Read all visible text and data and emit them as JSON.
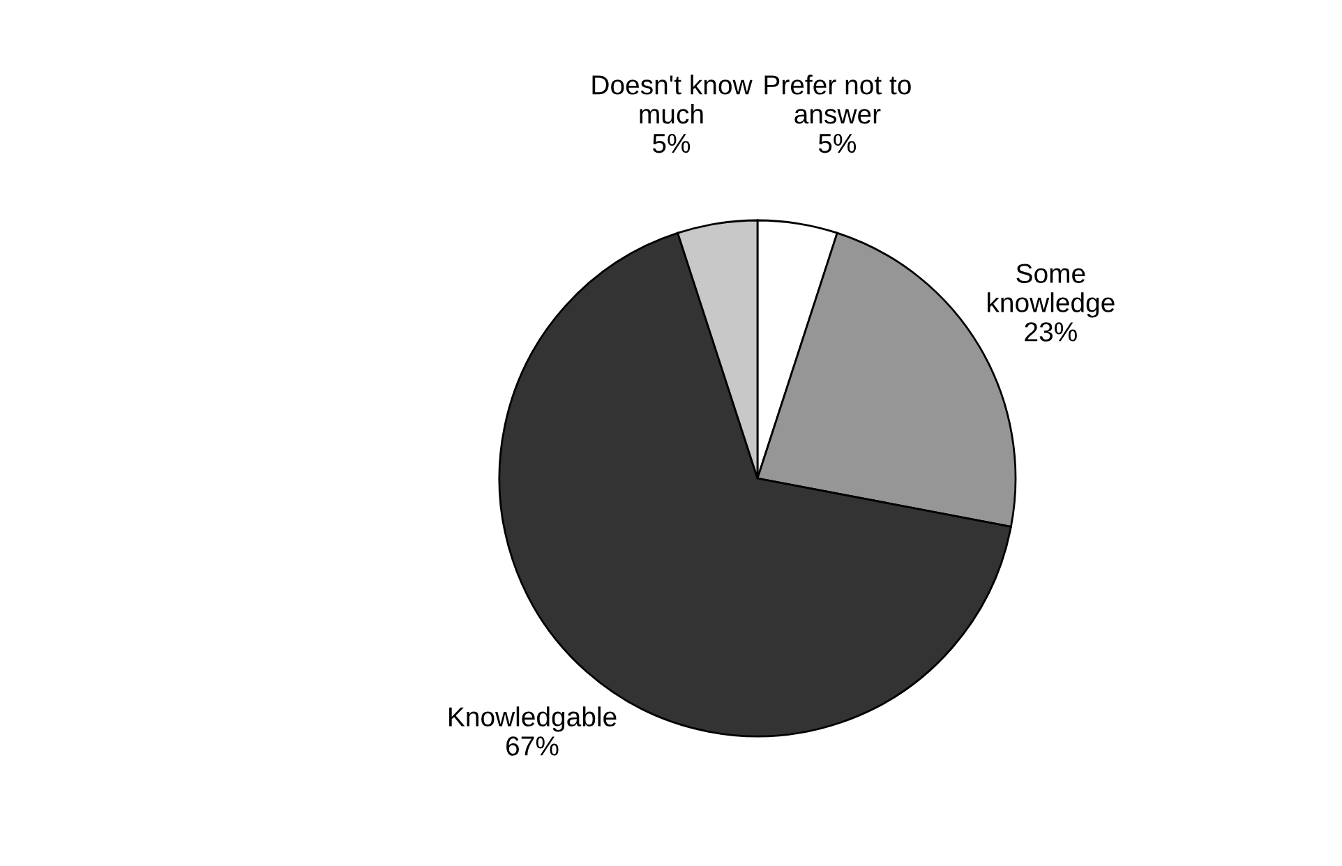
{
  "chart_data": {
    "type": "pie",
    "categories": [
      "Prefer not to\nanswer",
      "Some\nknowledge",
      "Knowledgable",
      "Doesn't know\nmuch"
    ],
    "values": [
      5,
      23,
      67,
      5
    ],
    "colors": [
      "#ffffff",
      "#969696",
      "#333333",
      "#c8c8c8"
    ],
    "value_labels": [
      "5%",
      "23%",
      "67%",
      "5%"
    ]
  }
}
